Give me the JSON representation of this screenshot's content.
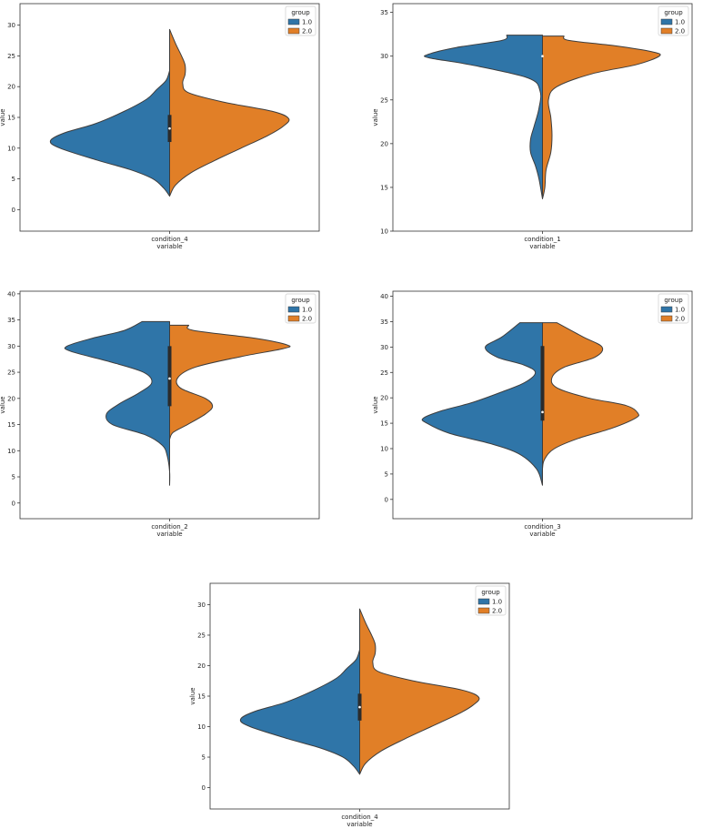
{
  "colors": {
    "group_1": "#2f75a8",
    "group_2": "#e17f27",
    "outline": "#3d3d3d",
    "inner": "#2b2b2b"
  },
  "chart_data": [
    {
      "type": "violin",
      "split": true,
      "category": "condition_4",
      "xlabel": "variable",
      "ylabel": "value",
      "yticks": [
        0,
        5,
        10,
        15,
        20,
        25,
        30
      ],
      "ylim": [
        -3.5,
        33.5
      ],
      "legend": {
        "title": "group",
        "entries": [
          "1.0",
          "2.0"
        ],
        "placement": "top-right"
      },
      "median": 13.2,
      "quartiles": [
        11.0,
        15.4
      ],
      "series": [
        {
          "name": "1.0",
          "y_range": [
            2.2,
            22.6
          ],
          "profile": [
            [
              2.2,
              0.0
            ],
            [
              3.5,
              0.05
            ],
            [
              5,
              0.14
            ],
            [
              6.5,
              0.33
            ],
            [
              8,
              0.6
            ],
            [
              10,
              0.92
            ],
            [
              11.2,
              1.0
            ],
            [
              12.5,
              0.88
            ],
            [
              14,
              0.62
            ],
            [
              16,
              0.38
            ],
            [
              18,
              0.19
            ],
            [
              19.5,
              0.11
            ],
            [
              21,
              0.03
            ],
            [
              22.6,
              0.0
            ]
          ]
        },
        {
          "name": "2.0",
          "y_range": [
            2.2,
            29.3
          ],
          "profile": [
            [
              2.2,
              0.0
            ],
            [
              4,
              0.05
            ],
            [
              6,
              0.18
            ],
            [
              8,
              0.38
            ],
            [
              10,
              0.6
            ],
            [
              12,
              0.82
            ],
            [
              13.5,
              0.95
            ],
            [
              14.8,
              1.0
            ],
            [
              16,
              0.86
            ],
            [
              17.5,
              0.45
            ],
            [
              19,
              0.16
            ],
            [
              20.5,
              0.11
            ],
            [
              22,
              0.13
            ],
            [
              23.5,
              0.13
            ],
            [
              25,
              0.1
            ],
            [
              27,
              0.05
            ],
            [
              29.3,
              0.0
            ]
          ]
        }
      ]
    },
    {
      "type": "violin",
      "split": true,
      "category": "condition_1",
      "xlabel": "variable",
      "ylabel": "value",
      "yticks": [
        10,
        15,
        20,
        25,
        30,
        35
      ],
      "ylim": [
        10,
        36
      ],
      "legend": {
        "title": "group",
        "entries": [
          "1.0",
          "2.0"
        ],
        "placement": "top-right"
      },
      "median": 30.0,
      "quartiles": [
        30.0,
        30.0
      ],
      "series": [
        {
          "name": "1.0",
          "y_range": [
            13.7,
            32.4
          ],
          "profile": [
            [
              13.7,
              0.0
            ],
            [
              16,
              0.03
            ],
            [
              17.5,
              0.06
            ],
            [
              19,
              0.1
            ],
            [
              20.5,
              0.1
            ],
            [
              22,
              0.07
            ],
            [
              24,
              0.03
            ],
            [
              26,
              0.02
            ],
            [
              27.5,
              0.12
            ],
            [
              29,
              0.6
            ],
            [
              29.8,
              0.95
            ],
            [
              30.2,
              0.96
            ],
            [
              31,
              0.72
            ],
            [
              31.8,
              0.34
            ],
            [
              32.4,
              0.3
            ]
          ]
        },
        {
          "name": "2.0",
          "y_range": [
            13.7,
            32.4
          ],
          "profile": [
            [
              13.7,
              0.0
            ],
            [
              15,
              0.02
            ],
            [
              17,
              0.03
            ],
            [
              19,
              0.07
            ],
            [
              21,
              0.08
            ],
            [
              23,
              0.07
            ],
            [
              25,
              0.05
            ],
            [
              26.5,
              0.12
            ],
            [
              28,
              0.42
            ],
            [
              29,
              0.78
            ],
            [
              30,
              0.98
            ],
            [
              30.5,
              0.92
            ],
            [
              31.2,
              0.6
            ],
            [
              31.8,
              0.22
            ],
            [
              32.3,
              0.18
            ]
          ]
        }
      ]
    },
    {
      "type": "violin",
      "split": true,
      "category": "condition_2",
      "xlabel": "variable",
      "ylabel": "value",
      "yticks": [
        0,
        5,
        10,
        15,
        20,
        25,
        30,
        35,
        40
      ],
      "ylim": [
        -3,
        40.5
      ],
      "legend": {
        "title": "group",
        "entries": [
          "1.0",
          "2.0"
        ],
        "placement": "top-right"
      },
      "median": 23.8,
      "quartiles": [
        18.5,
        30.0
      ],
      "series": [
        {
          "name": "1.0",
          "y_range": [
            3.4,
            34.7
          ],
          "profile": [
            [
              3.4,
              0.0
            ],
            [
              6,
              0.0
            ],
            [
              9,
              0.02
            ],
            [
              11,
              0.06
            ],
            [
              13,
              0.2
            ],
            [
              15,
              0.48
            ],
            [
              17,
              0.53
            ],
            [
              19,
              0.42
            ],
            [
              21,
              0.26
            ],
            [
              23,
              0.15
            ],
            [
              25,
              0.22
            ],
            [
              27,
              0.5
            ],
            [
              29,
              0.83
            ],
            [
              30,
              0.86
            ],
            [
              31.5,
              0.65
            ],
            [
              33,
              0.38
            ],
            [
              34.7,
              0.23
            ]
          ]
        },
        {
          "name": "2.0",
          "y_range": [
            12.2,
            34.0
          ],
          "profile": [
            [
              12.2,
              0.0
            ],
            [
              13.5,
              0.03
            ],
            [
              15,
              0.15
            ],
            [
              17,
              0.3
            ],
            [
              18.5,
              0.36
            ],
            [
              20,
              0.3
            ],
            [
              22,
              0.09
            ],
            [
              24,
              0.07
            ],
            [
              26,
              0.22
            ],
            [
              28,
              0.6
            ],
            [
              29.5,
              0.95
            ],
            [
              30.2,
              0.99
            ],
            [
              31.5,
              0.72
            ],
            [
              33,
              0.2
            ],
            [
              34.0,
              0.16
            ]
          ]
        }
      ]
    },
    {
      "type": "violin",
      "split": true,
      "category": "condition_3",
      "xlabel": "variable",
      "ylabel": "value",
      "yticks": [
        0,
        5,
        10,
        15,
        20,
        25,
        30,
        35,
        40
      ],
      "ylim": [
        -3.8,
        41
      ],
      "legend": {
        "title": "group",
        "entries": [
          "1.0",
          "2.0"
        ],
        "placement": "top-right"
      },
      "median": 17.2,
      "quartiles": [
        15.5,
        30.2
      ],
      "series": [
        {
          "name": "1.0",
          "y_range": [
            2.8,
            34.8
          ],
          "profile": [
            [
              2.8,
              0.0
            ],
            [
              6,
              0.05
            ],
            [
              9,
              0.2
            ],
            [
              11,
              0.44
            ],
            [
              13,
              0.78
            ],
            [
              15,
              0.97
            ],
            [
              16,
              1.0
            ],
            [
              17.5,
              0.84
            ],
            [
              19,
              0.6
            ],
            [
              21,
              0.36
            ],
            [
              23,
              0.15
            ],
            [
              25,
              0.06
            ],
            [
              26.5,
              0.16
            ],
            [
              28,
              0.38
            ],
            [
              30,
              0.48
            ],
            [
              32,
              0.34
            ],
            [
              34.8,
              0.19
            ]
          ]
        },
        {
          "name": "2.0",
          "y_range": [
            2.8,
            34.8
          ],
          "profile": [
            [
              2.8,
              0.0
            ],
            [
              6,
              0.0
            ],
            [
              8,
              0.02
            ],
            [
              10,
              0.1
            ],
            [
              12,
              0.3
            ],
            [
              14,
              0.58
            ],
            [
              16,
              0.78
            ],
            [
              17,
              0.8
            ],
            [
              18.5,
              0.7
            ],
            [
              20,
              0.38
            ],
            [
              22,
              0.12
            ],
            [
              24,
              0.08
            ],
            [
              26,
              0.18
            ],
            [
              28,
              0.44
            ],
            [
              30,
              0.5
            ],
            [
              32,
              0.34
            ],
            [
              34.8,
              0.12
            ]
          ]
        }
      ]
    },
    {
      "type": "violin",
      "split": true,
      "category": "condition_4",
      "xlabel": "variable",
      "ylabel": "value",
      "yticks": [
        0,
        5,
        10,
        15,
        20,
        25,
        30
      ],
      "ylim": [
        -3.5,
        33.5
      ],
      "legend": {
        "title": "group",
        "entries": [
          "1.0",
          "2.0"
        ],
        "placement": "top-right"
      },
      "median": 13.2,
      "quartiles": [
        11.0,
        15.4
      ],
      "series": [
        {
          "name": "1.0",
          "y_range": [
            2.2,
            22.6
          ],
          "profile": [
            [
              2.2,
              0.0
            ],
            [
              3.5,
              0.05
            ],
            [
              5,
              0.14
            ],
            [
              6.5,
              0.33
            ],
            [
              8,
              0.6
            ],
            [
              10,
              0.92
            ],
            [
              11.2,
              1.0
            ],
            [
              12.5,
              0.88
            ],
            [
              14,
              0.62
            ],
            [
              16,
              0.38
            ],
            [
              18,
              0.19
            ],
            [
              19.5,
              0.11
            ],
            [
              21,
              0.03
            ],
            [
              22.6,
              0.0
            ]
          ]
        },
        {
          "name": "2.0",
          "y_range": [
            2.2,
            29.3
          ],
          "profile": [
            [
              2.2,
              0.0
            ],
            [
              4,
              0.05
            ],
            [
              6,
              0.18
            ],
            [
              8,
              0.38
            ],
            [
              10,
              0.6
            ],
            [
              12,
              0.82
            ],
            [
              13.5,
              0.95
            ],
            [
              14.8,
              1.0
            ],
            [
              16,
              0.86
            ],
            [
              17.5,
              0.45
            ],
            [
              19,
              0.16
            ],
            [
              20.5,
              0.11
            ],
            [
              22,
              0.13
            ],
            [
              23.5,
              0.13
            ],
            [
              25,
              0.1
            ],
            [
              27,
              0.05
            ],
            [
              29.3,
              0.0
            ]
          ]
        }
      ]
    }
  ]
}
